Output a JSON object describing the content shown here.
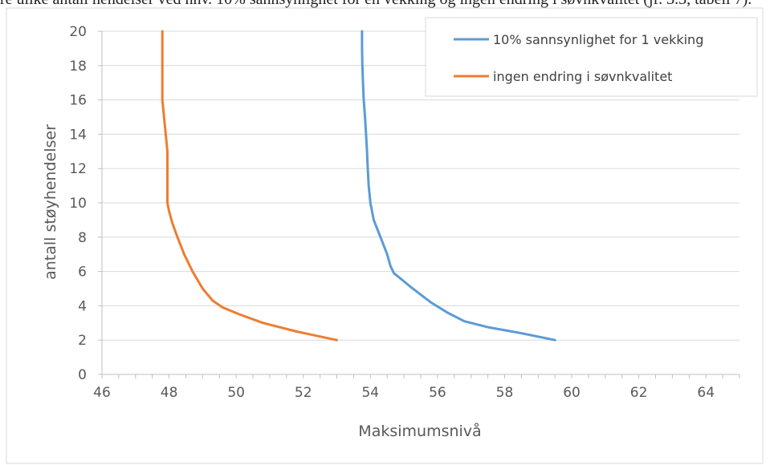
{
  "caption_fragment": "re ulike antall hendelser ved hhv. 10% sannsynlighet for én vekking og ingen endring i søvnkvalitet (jf. 3.3, tabell 7).",
  "chart_data": {
    "type": "line",
    "title": "",
    "xlabel": "Maksimumsnivå",
    "ylabel": "antall støyhendelser",
    "xlim": [
      46,
      65
    ],
    "ylim": [
      0,
      20
    ],
    "x_ticks": [
      46,
      48,
      50,
      52,
      54,
      56,
      58,
      60,
      62,
      64
    ],
    "y_ticks": [
      0,
      2,
      4,
      6,
      8,
      10,
      12,
      14,
      16,
      18,
      20
    ],
    "x_tick_labels": [
      "46",
      "48",
      "50",
      "52",
      "54",
      "56",
      "58",
      "60",
      "62",
      "64"
    ],
    "y_tick_labels": [
      "0",
      "2",
      "4",
      "6",
      "8",
      "10",
      "12",
      "14",
      "16",
      "18",
      "20"
    ],
    "grid": "horizontal",
    "legend_position": "top-right",
    "series": [
      {
        "name": "10% sannsynlighet for 1 vekking",
        "color": "#5b9bd5",
        "points": [
          [
            59.5,
            2
          ],
          [
            58.5,
            2.4
          ],
          [
            57.5,
            2.75
          ],
          [
            56.8,
            3.1
          ],
          [
            56.3,
            3.6
          ],
          [
            55.8,
            4.2
          ],
          [
            55.2,
            5.1
          ],
          [
            54.7,
            5.9
          ],
          [
            54.6,
            6.3
          ],
          [
            54.5,
            7
          ],
          [
            54.3,
            8
          ],
          [
            54.1,
            9
          ],
          [
            54.0,
            10
          ],
          [
            53.95,
            11
          ],
          [
            53.92,
            12
          ],
          [
            53.9,
            13
          ],
          [
            53.87,
            14
          ],
          [
            53.84,
            15
          ],
          [
            53.8,
            16
          ],
          [
            53.78,
            17
          ],
          [
            53.76,
            18
          ],
          [
            53.75,
            19
          ],
          [
            53.75,
            20
          ]
        ]
      },
      {
        "name": "ingen endring i søvnkvalitet",
        "color": "#ed7d31",
        "points": [
          [
            53.0,
            2
          ],
          [
            51.8,
            2.5
          ],
          [
            50.8,
            3.0
          ],
          [
            50.1,
            3.5
          ],
          [
            49.6,
            3.9
          ],
          [
            49.3,
            4.3
          ],
          [
            49.0,
            5.0
          ],
          [
            48.7,
            6.0
          ],
          [
            48.45,
            7
          ],
          [
            48.25,
            8
          ],
          [
            48.1,
            8.8
          ],
          [
            48.0,
            9.5
          ],
          [
            47.95,
            10
          ],
          [
            47.95,
            11
          ],
          [
            47.95,
            12
          ],
          [
            47.95,
            13
          ],
          [
            47.9,
            14
          ],
          [
            47.85,
            15
          ],
          [
            47.8,
            16
          ],
          [
            47.8,
            17
          ],
          [
            47.8,
            18
          ],
          [
            47.8,
            19
          ],
          [
            47.8,
            20
          ]
        ]
      }
    ]
  }
}
